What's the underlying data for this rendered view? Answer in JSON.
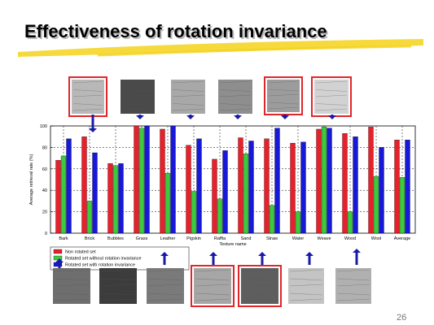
{
  "slide": {
    "title": "Effectiveness of rotation invariance",
    "page_number": "26"
  },
  "chart_data": {
    "type": "bar",
    "title": "",
    "xlabel": "Texture name",
    "ylabel": "Average retrieval rate (%)",
    "ylim": [
      0,
      100
    ],
    "yticks": [
      0,
      20,
      40,
      60,
      80,
      100
    ],
    "grid": "dashed",
    "legend_position": "bottom-left",
    "categories": [
      "Bark",
      "Brick",
      "Bubbles",
      "Grass",
      "Leather",
      "Pigskin",
      "Raffia",
      "Sand",
      "Straw",
      "Water",
      "Weave",
      "Wood",
      "Wool",
      "Average"
    ],
    "series": [
      {
        "name": "Non rotated set",
        "color": "#e8202a",
        "values": [
          68,
          90,
          65,
          100,
          97,
          82,
          69,
          89,
          88,
          84,
          97,
          93,
          99,
          87
        ]
      },
      {
        "name": "Rotated set without rotation invariance",
        "color": "#3ec93e",
        "values": [
          72,
          30,
          63,
          98,
          56,
          39,
          32,
          74,
          26,
          20,
          99,
          20,
          53,
          52
        ]
      },
      {
        "name": "Rotated set with rotation invariance",
        "color": "#1818d8",
        "values": [
          88,
          75,
          65,
          100,
          100,
          88,
          77,
          86,
          98,
          85,
          98,
          90,
          80,
          87
        ]
      }
    ]
  }
}
